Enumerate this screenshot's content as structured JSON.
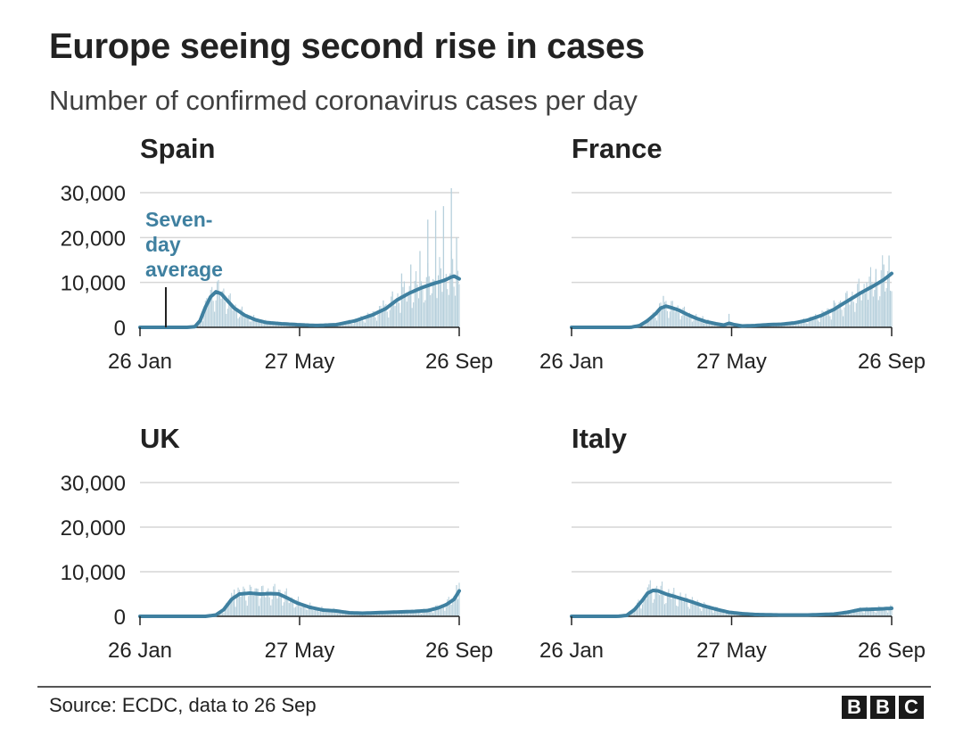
{
  "title": "Europe seeing second rise in cases",
  "subtitle": "Number of confirmed coronavirus cases per day",
  "source": "Source: ECDC, data to 26 Sep",
  "logo": {
    "letters": [
      "B",
      "B",
      "C"
    ]
  },
  "colors": {
    "line": "#3f80a0",
    "bars": "#b7d0dc",
    "grid": "#d6d6d6",
    "axis": "#222222",
    "annotation": "#3f80a0"
  },
  "annotation": {
    "label_lines": [
      "Seven-",
      "day",
      "average"
    ],
    "panel": "Spain"
  },
  "chart_data": [
    {
      "type": "bar+line",
      "title": "Spain",
      "xlim": [
        0,
        244
      ],
      "ylim": [
        0,
        30000
      ],
      "yticks": [
        0,
        10000,
        20000,
        30000
      ],
      "ytick_labels": [
        "0",
        "10,000",
        "20,000",
        "30,000"
      ],
      "xticks": [
        0,
        122,
        244
      ],
      "xtick_labels": [
        "26 Jan",
        "27 May",
        "26 Sep"
      ],
      "show_y_labels": true,
      "avg_points": [
        [
          0,
          0
        ],
        [
          36,
          0
        ],
        [
          42,
          150
        ],
        [
          46,
          1500
        ],
        [
          50,
          4500
        ],
        [
          54,
          6800
        ],
        [
          58,
          7900
        ],
        [
          62,
          7500
        ],
        [
          66,
          6200
        ],
        [
          72,
          4300
        ],
        [
          80,
          2700
        ],
        [
          88,
          1700
        ],
        [
          96,
          1100
        ],
        [
          108,
          800
        ],
        [
          120,
          600
        ],
        [
          135,
          400
        ],
        [
          150,
          600
        ],
        [
          165,
          1500
        ],
        [
          178,
          2800
        ],
        [
          188,
          4200
        ],
        [
          196,
          6000
        ],
        [
          205,
          7500
        ],
        [
          215,
          8800
        ],
        [
          225,
          9800
        ],
        [
          233,
          10500
        ],
        [
          238,
          11200
        ],
        [
          240,
          11400
        ],
        [
          244,
          10800
        ]
      ],
      "bar_spikes": [
        [
          186,
          6000
        ],
        [
          193,
          8000
        ],
        [
          200,
          12000
        ],
        [
          207,
          14000
        ],
        [
          214,
          17000
        ],
        [
          220,
          24000
        ],
        [
          226,
          26000
        ],
        [
          232,
          27000
        ],
        [
          238,
          31000
        ],
        [
          242,
          20000
        ]
      ]
    },
    {
      "type": "bar+line",
      "title": "France",
      "xlim": [
        0,
        244
      ],
      "ylim": [
        0,
        30000
      ],
      "yticks": [
        0,
        10000,
        20000,
        30000
      ],
      "ytick_labels": [
        "0",
        "10,000",
        "20,000",
        "30,000"
      ],
      "xticks": [
        0,
        122,
        244
      ],
      "xtick_labels": [
        "26 Jan",
        "27 May",
        "26 Sep"
      ],
      "show_y_labels": false,
      "avg_points": [
        [
          0,
          0
        ],
        [
          45,
          0
        ],
        [
          52,
          400
        ],
        [
          58,
          1500
        ],
        [
          64,
          3000
        ],
        [
          68,
          4300
        ],
        [
          72,
          4700
        ],
        [
          76,
          4400
        ],
        [
          82,
          3800
        ],
        [
          88,
          2900
        ],
        [
          95,
          2000
        ],
        [
          102,
          1300
        ],
        [
          110,
          800
        ],
        [
          116,
          500
        ],
        [
          120,
          900
        ],
        [
          124,
          600
        ],
        [
          130,
          300
        ],
        [
          140,
          400
        ],
        [
          150,
          600
        ],
        [
          160,
          700
        ],
        [
          170,
          1000
        ],
        [
          180,
          1600
        ],
        [
          190,
          2600
        ],
        [
          200,
          4000
        ],
        [
          210,
          5800
        ],
        [
          220,
          7600
        ],
        [
          230,
          9200
        ],
        [
          238,
          10600
        ],
        [
          244,
          12000
        ]
      ],
      "bar_spikes": [
        [
          70,
          7000
        ],
        [
          100,
          2500
        ],
        [
          120,
          3000
        ],
        [
          200,
          6000
        ],
        [
          210,
          7500
        ],
        [
          225,
          10000
        ],
        [
          232,
          13000
        ],
        [
          238,
          14000
        ],
        [
          242,
          16000
        ]
      ]
    },
    {
      "type": "bar+line",
      "title": "UK",
      "xlim": [
        0,
        244
      ],
      "ylim": [
        0,
        30000
      ],
      "yticks": [
        0,
        10000,
        20000,
        30000
      ],
      "ytick_labels": [
        "0",
        "10,000",
        "20,000",
        "30,000"
      ],
      "xticks": [
        0,
        122,
        244
      ],
      "xtick_labels": [
        "26 Jan",
        "27 May",
        "26 Sep"
      ],
      "show_y_labels": true,
      "avg_points": [
        [
          0,
          0
        ],
        [
          50,
          0
        ],
        [
          58,
          300
        ],
        [
          64,
          1500
        ],
        [
          70,
          3800
        ],
        [
          76,
          5000
        ],
        [
          84,
          5200
        ],
        [
          92,
          5000
        ],
        [
          100,
          5100
        ],
        [
          106,
          5000
        ],
        [
          112,
          4200
        ],
        [
          120,
          3000
        ],
        [
          130,
          2000
        ],
        [
          140,
          1400
        ],
        [
          150,
          1200
        ],
        [
          160,
          800
        ],
        [
          170,
          700
        ],
        [
          180,
          800
        ],
        [
          190,
          900
        ],
        [
          200,
          1000
        ],
        [
          210,
          1100
        ],
        [
          220,
          1300
        ],
        [
          228,
          1900
        ],
        [
          234,
          2600
        ],
        [
          240,
          3800
        ],
        [
          244,
          5700
        ]
      ],
      "bar_spikes": [
        [
          72,
          6000
        ],
        [
          90,
          6200
        ],
        [
          106,
          6000
        ],
        [
          242,
          7000
        ]
      ]
    },
    {
      "type": "bar+line",
      "title": "Italy",
      "xlim": [
        0,
        244
      ],
      "ylim": [
        0,
        30000
      ],
      "yticks": [
        0,
        10000,
        20000,
        30000
      ],
      "ytick_labels": [
        "0",
        "10,000",
        "20,000",
        "30,000"
      ],
      "xticks": [
        0,
        122,
        244
      ],
      "xtick_labels": [
        "26 Jan",
        "27 May",
        "26 Sep"
      ],
      "show_y_labels": false,
      "avg_points": [
        [
          0,
          0
        ],
        [
          35,
          0
        ],
        [
          42,
          200
        ],
        [
          48,
          1500
        ],
        [
          54,
          3600
        ],
        [
          58,
          5200
        ],
        [
          62,
          5800
        ],
        [
          66,
          5700
        ],
        [
          72,
          5000
        ],
        [
          80,
          4300
        ],
        [
          90,
          3400
        ],
        [
          100,
          2400
        ],
        [
          110,
          1600
        ],
        [
          120,
          900
        ],
        [
          130,
          600
        ],
        [
          140,
          400
        ],
        [
          160,
          300
        ],
        [
          180,
          300
        ],
        [
          200,
          500
        ],
        [
          210,
          900
        ],
        [
          220,
          1500
        ],
        [
          230,
          1600
        ],
        [
          238,
          1700
        ],
        [
          244,
          1800
        ]
      ],
      "bar_spikes": [
        [
          58,
          6500
        ],
        [
          64,
          6300
        ],
        [
          74,
          5500
        ]
      ]
    }
  ]
}
